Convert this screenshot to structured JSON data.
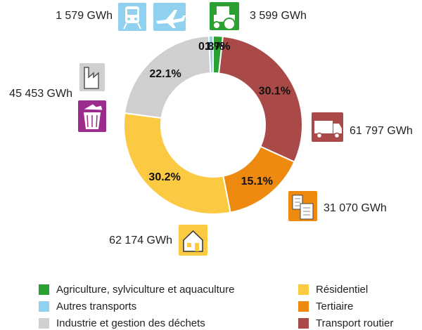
{
  "chart_data": {
    "type": "donut",
    "title": "",
    "slices": [
      {
        "label": "Agriculture, sylviculture et aquaculture",
        "percent_label": "1.7%",
        "value": 3599,
        "value_label": "3 599 GWh",
        "color": "#2ca033",
        "icon": "tractor-icon"
      },
      {
        "label": "Transport routier",
        "percent_label": "30.1%",
        "value": 61797,
        "value_label": "61 797 GWh",
        "color": "#a94a48",
        "icon": "truck-icon"
      },
      {
        "label": "Tertiaire",
        "percent_label": "15.1%",
        "value": 31070,
        "value_label": "31 070 GWh",
        "color": "#ef8a10",
        "icon": "office-building-icon"
      },
      {
        "label": "Résidentiel",
        "percent_label": "30.2%",
        "value": 62174,
        "value_label": "62 174 GWh",
        "color": "#fbc942",
        "icon": "house-icon"
      },
      {
        "label": "Industrie et gestion des déchets",
        "percent_label": "22.1%",
        "value": 45453,
        "value_label": "45 453 GWh",
        "color": "#cfcfcf",
        "icon": "factory-and-waste-bin-icon"
      },
      {
        "label": "Autres transports",
        "percent_label": "0.8%",
        "value": 1579,
        "value_label": "1 579 GWh",
        "color": "#8fd1ee",
        "icon": "train-and-plane-icon"
      }
    ],
    "legend": {
      "placement": "bottom",
      "left": [
        "Agriculture, sylviculture et aquaculture",
        "Autres transports",
        "Industrie et gestion des déchets"
      ],
      "right": [
        "Résidentiel",
        "Tertiaire",
        "Transport routier"
      ]
    }
  }
}
